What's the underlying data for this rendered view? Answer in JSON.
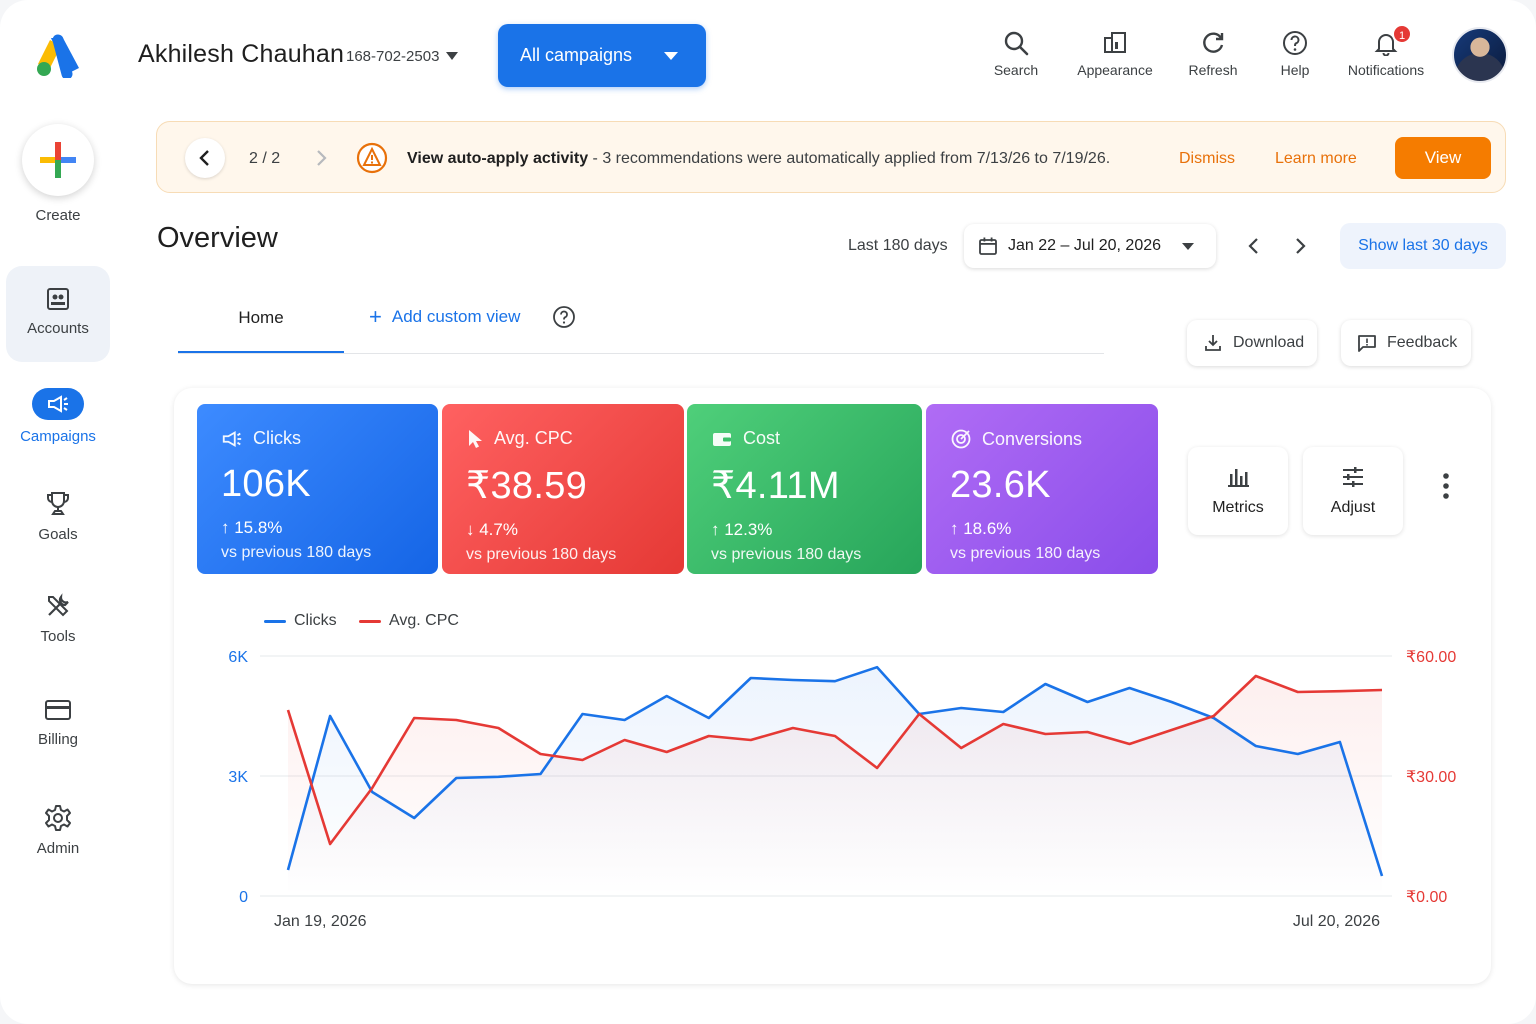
{
  "header": {
    "account_name": "Akhilesh Chauhan",
    "account_id": "168-702-2503",
    "campaign_selector": "All campaigns",
    "actions": [
      {
        "label": "Search",
        "icon": "search-icon"
      },
      {
        "label": "Appearance",
        "icon": "appearance-icon"
      },
      {
        "label": "Refresh",
        "icon": "refresh-icon"
      },
      {
        "label": "Help",
        "icon": "help-icon"
      },
      {
        "label": "Notifications",
        "icon": "bell-icon",
        "badge": "1"
      }
    ]
  },
  "sidebar": {
    "create_label": "Create",
    "items": [
      {
        "label": "Accounts",
        "icon": "accounts-icon"
      },
      {
        "label": "Campaigns",
        "icon": "campaigns-icon",
        "active": true
      },
      {
        "label": "Goals",
        "icon": "trophy-icon"
      },
      {
        "label": "Tools",
        "icon": "tools-icon"
      },
      {
        "label": "Billing",
        "icon": "card-icon"
      },
      {
        "label": "Admin",
        "icon": "gear-icon"
      }
    ]
  },
  "banner": {
    "pager": "2 / 2",
    "title": "View auto-apply activity",
    "message": " - 3 recommendations were automatically applied from 7/13/26 to 7/19/26.",
    "dismiss": "Dismiss",
    "learn_more": "Learn more",
    "view": "View"
  },
  "overview": {
    "title": "Overview",
    "range_label": "Last 180 days",
    "date_range": "Jan 22 – Jul 20, 2026",
    "show_last": "Show last 30 days"
  },
  "tabs": {
    "home": "Home",
    "add_custom_view": "Add custom view",
    "download": "Download",
    "feedback": "Feedback"
  },
  "metrics": [
    {
      "label": "Clicks",
      "value": "106K",
      "change": "↑ 15.8%",
      "sub": "vs previous 180 days",
      "color": "#1a73e8"
    },
    {
      "label": "Avg. CPC",
      "value": "₹38.59",
      "change": "↓ 4.7%",
      "sub": "vs previous 180 days",
      "color": "#e53935"
    },
    {
      "label": "Cost",
      "value": "₹4.11M",
      "change": "↑ 12.3%",
      "sub": "vs previous 180 days",
      "color": "#27a55a"
    },
    {
      "label": "Conversions",
      "value": "23.6K",
      "change": "↑ 18.6%",
      "sub": "vs previous 180 days",
      "color": "#8a4dea"
    }
  ],
  "tools": {
    "metrics": "Metrics",
    "adjust": "Adjust"
  },
  "chart_data": {
    "type": "line",
    "x_start": "Jan 19, 2026",
    "x_end": "Jul 20, 2026",
    "grid": true,
    "legend_placement": "top-left",
    "left_axis": {
      "ticks": [
        "0",
        "3K",
        "6K"
      ],
      "range": [
        0,
        6000
      ],
      "color": "#1a73e8"
    },
    "right_axis": {
      "ticks": [
        "₹0.00",
        "₹30.00",
        "₹60.00"
      ],
      "range": [
        0,
        60
      ],
      "color": "#e53935"
    },
    "series": [
      {
        "name": "Clicks",
        "axis": "left",
        "color": "#1a73e8",
        "values": [
          650,
          4500,
          2600,
          1950,
          2950,
          2980,
          3050,
          4550,
          4400,
          5000,
          4450,
          5450,
          5400,
          5370,
          5720,
          4550,
          4700,
          4600,
          5300,
          4850,
          5200,
          4850,
          4450,
          3750,
          3550,
          3850,
          500
        ]
      },
      {
        "name": "Avg. CPC",
        "axis": "right",
        "color": "#e53935",
        "values": [
          46.5,
          13.0,
          27.0,
          44.5,
          44.0,
          42.0,
          35.5,
          34.0,
          39.0,
          36.0,
          40.0,
          39.0,
          42.0,
          40.0,
          32.0,
          45.5,
          37.0,
          43.0,
          40.5,
          41.0,
          38.0,
          41.5,
          45.0,
          55.0,
          51.0,
          51.2,
          51.5
        ]
      }
    ]
  }
}
